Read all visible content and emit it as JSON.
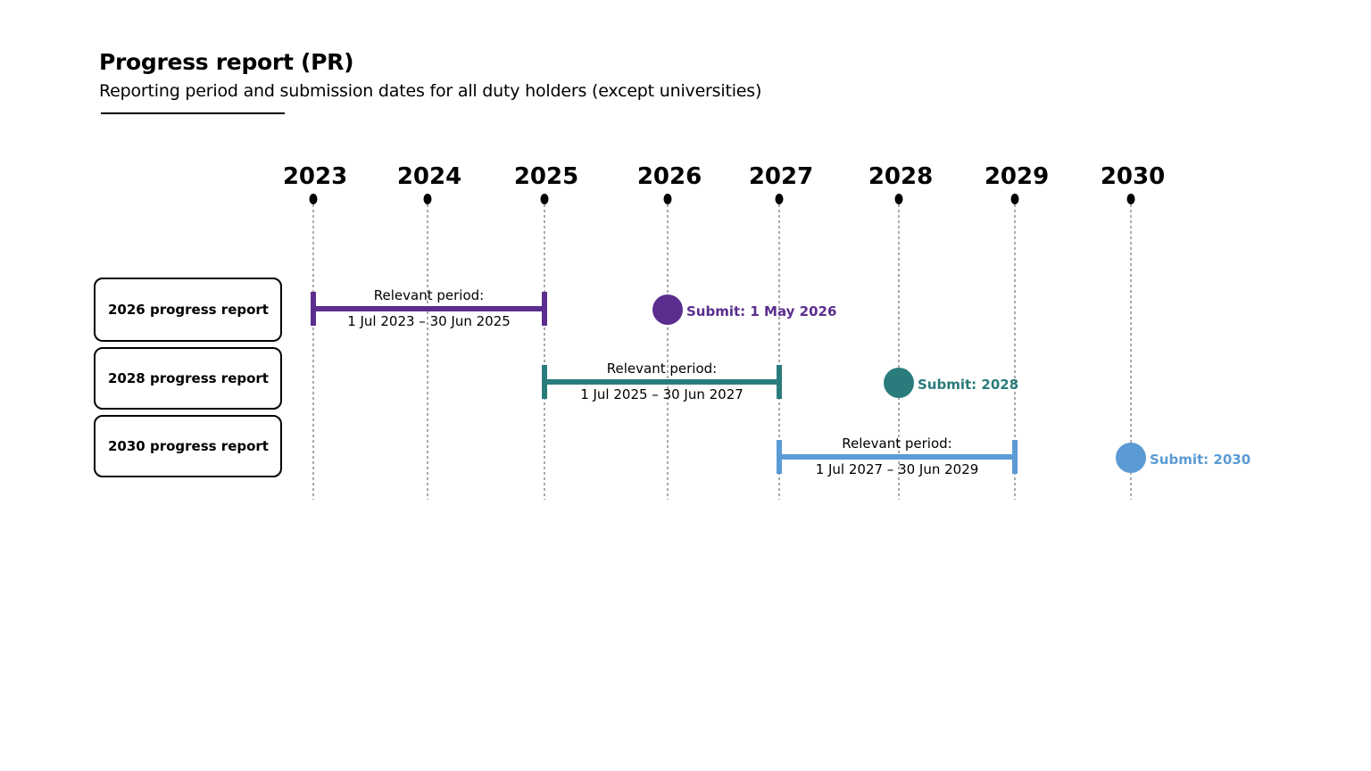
{
  "header": {
    "title": "Progress report (PR)",
    "subtitle": "Reporting period and submission dates for all duty holders (except universities)"
  },
  "timeline": {
    "years": [
      "2023",
      "2024",
      "2025",
      "2026",
      "2027",
      "2028",
      "2029",
      "2030"
    ]
  },
  "reports": [
    {
      "label": "2026 progress report",
      "color": "#5b2d8e",
      "fill": "#d1c0dd",
      "period_caption": "Relevant period:",
      "period_range": "1 Jul 2023 – 30 Jun 2025",
      "start_year": 2023,
      "end_year": 2025,
      "submit_label": "Submit: 1 May 2026",
      "submit_year": 2026
    },
    {
      "label": "2028 progress report",
      "color": "#2a7b7b",
      "fill": "#c0dad9",
      "period_caption": "Relevant period:",
      "period_range": "1 Jul 2025 – 30 Jun 2027",
      "start_year": 2025,
      "end_year": 2027,
      "submit_label": "Submit: 2028",
      "submit_year": 2028
    },
    {
      "label": "2030 progress report",
      "color": "#5b9bd5",
      "fill": "#cfe1f3",
      "period_caption": "Relevant period:",
      "period_range": "1 Jul 2027 – 30 Jun 2029",
      "start_year": 2027,
      "end_year": 2029,
      "submit_label": "Submit: 2030",
      "submit_year": 2030
    }
  ]
}
